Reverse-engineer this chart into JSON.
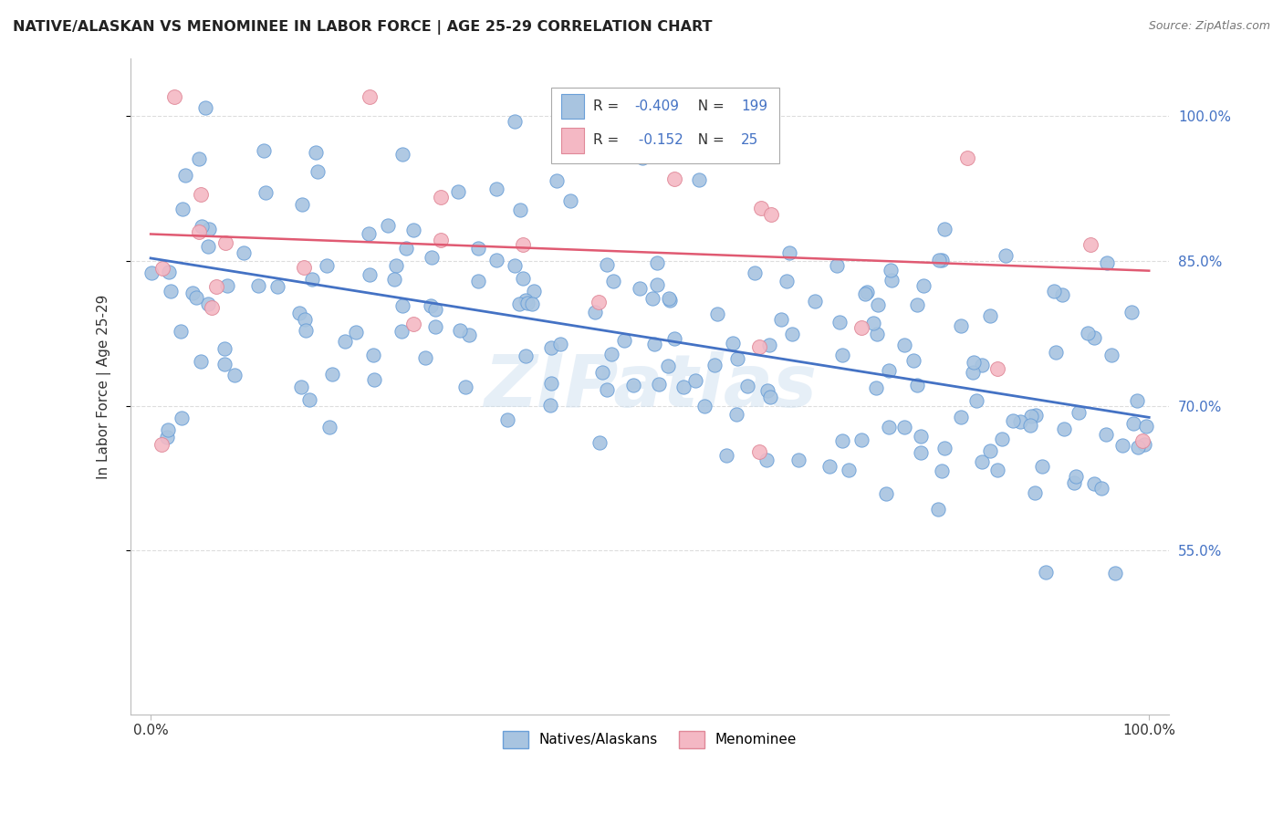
{
  "title": "NATIVE/ALASKAN VS MENOMINEE IN LABOR FORCE | AGE 25-29 CORRELATION CHART",
  "source": "Source: ZipAtlas.com",
  "ylabel": "In Labor Force | Age 25-29",
  "ytick_labels": [
    "55.0%",
    "70.0%",
    "85.0%",
    "100.0%"
  ],
  "ytick_values": [
    0.55,
    0.7,
    0.85,
    1.0
  ],
  "xlim": [
    -0.02,
    1.02
  ],
  "ylim": [
    0.38,
    1.06
  ],
  "blue_color": "#a8c4e0",
  "blue_edge_color": "#6a9fd8",
  "blue_line_color": "#4472c4",
  "pink_color": "#f4b8c4",
  "pink_edge_color": "#e08898",
  "pink_line_color": "#e05a72",
  "legend_blue_label": "Natives/Alaskans",
  "legend_pink_label": "Menominee",
  "R_blue": -0.409,
  "N_blue": 199,
  "R_pink": -0.152,
  "N_pink": 25,
  "watermark": "ZIPatlas",
  "background_color": "#ffffff",
  "grid_color": "#dddddd",
  "blue_trend_x0": 0.0,
  "blue_trend_y0": 0.853,
  "blue_trend_x1": 1.0,
  "blue_trend_y1": 0.688,
  "pink_trend_x0": 0.0,
  "pink_trend_y0": 0.878,
  "pink_trend_x1": 1.0,
  "pink_trend_y1": 0.84
}
